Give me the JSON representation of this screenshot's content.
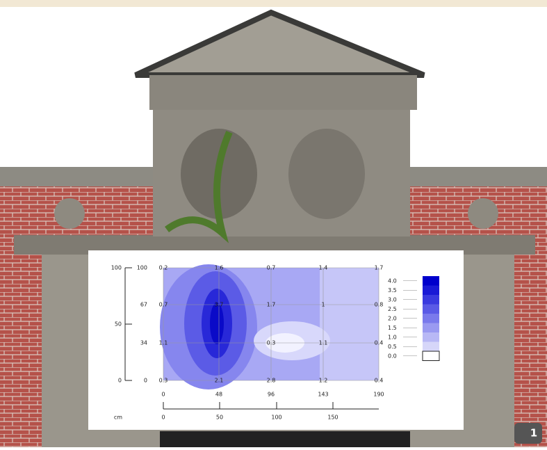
{
  "inset": {
    "left_scale": [
      "100",
      "50",
      "0"
    ],
    "row_labels": [
      "100",
      "67",
      "34",
      "0"
    ],
    "grid_values": [
      [
        "0.2",
        "1.6",
        "0.7",
        "1.4",
        "1.7"
      ],
      [
        "0.7",
        "3.7",
        "1.7",
        "1",
        "0.8"
      ],
      [
        "1.1",
        null,
        "0.3",
        "1.1",
        "0.4"
      ],
      [
        "0.3",
        "2.1",
        "2.8",
        "1.2",
        "0.4"
      ]
    ],
    "column_labels": [
      "0",
      "48",
      "96",
      "143",
      "190"
    ],
    "scale_unit": "cm",
    "scale_labels": [
      "0",
      "50",
      "100",
      "150"
    ],
    "legend_labels": [
      "4.0",
      "3.5",
      "3.0",
      "2.5",
      "2.0",
      "1.5",
      "1.0",
      "0.5",
      "0.0"
    ]
  },
  "badge": "1"
}
